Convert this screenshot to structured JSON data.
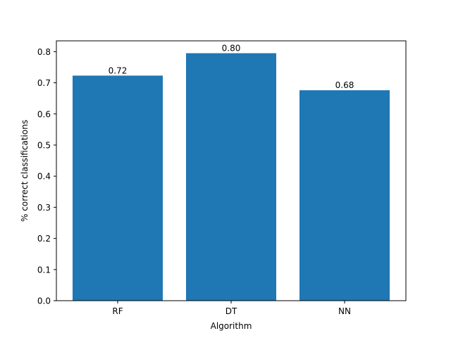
{
  "chart_data": {
    "type": "bar",
    "categories": [
      "RF",
      "DT",
      "NN"
    ],
    "values": [
      0.723,
      0.795,
      0.676
    ],
    "value_labels": [
      "0.72",
      "0.80",
      "0.68"
    ],
    "xlabel": "Algorithm",
    "ylabel": "% correct classifications",
    "ylim": [
      0,
      0.8347
    ],
    "yticks": [
      0.0,
      0.1,
      0.2,
      0.3,
      0.4,
      0.5,
      0.6,
      0.7,
      0.8
    ],
    "ytick_labels": [
      "0.0",
      "0.1",
      "0.2",
      "0.3",
      "0.4",
      "0.5",
      "0.6",
      "0.7",
      "0.8"
    ],
    "grid": false,
    "legend": "none",
    "bar_color": "#1f77b4"
  }
}
